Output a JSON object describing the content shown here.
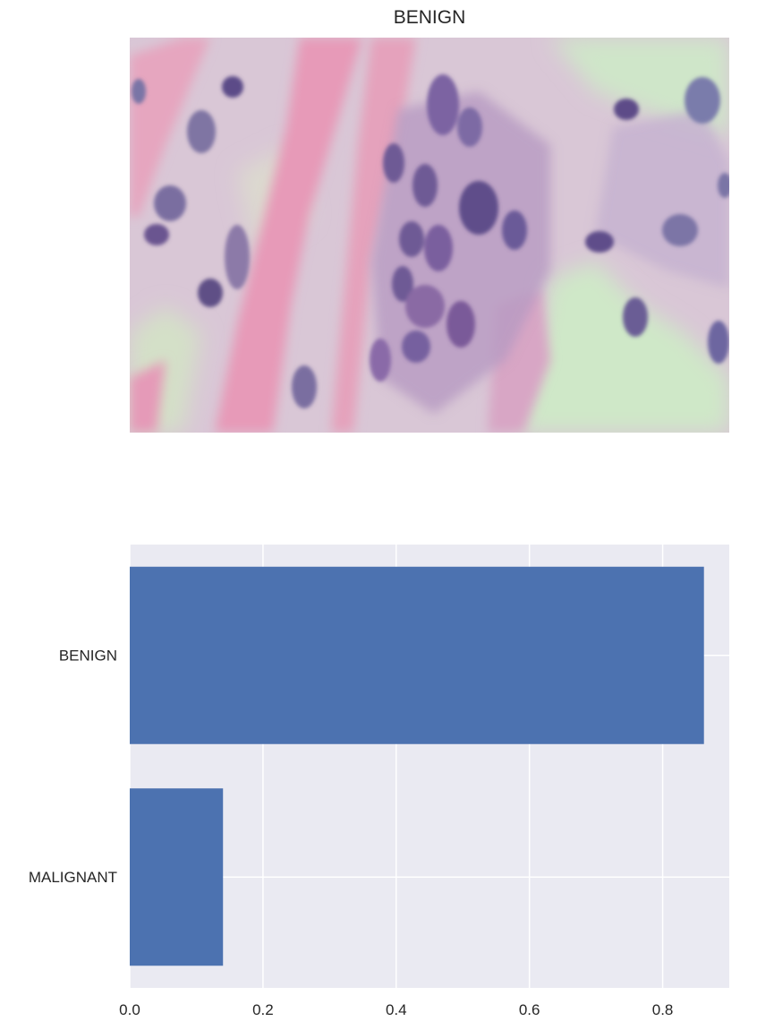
{
  "figure": {
    "image_title": "BENIGN",
    "image_description_icon": "histology-image"
  },
  "colors": {
    "bar": "#4c72b0",
    "plot_bg": "#eaeaf2",
    "grid": "#ffffff",
    "text": "#262626"
  },
  "chart_data": {
    "type": "bar",
    "orientation": "horizontal",
    "categories": [
      "BENIGN",
      "MALIGNANT"
    ],
    "values": [
      0.862,
      0.14
    ],
    "title": "",
    "xlabel": "",
    "ylabel": "",
    "xlim": [
      0,
      0.9
    ],
    "xticks": [
      0.0,
      0.2,
      0.4,
      0.6,
      0.8
    ],
    "xtick_labels": [
      "0.0",
      "0.2",
      "0.4",
      "0.6",
      "0.8"
    ],
    "grid": true
  }
}
